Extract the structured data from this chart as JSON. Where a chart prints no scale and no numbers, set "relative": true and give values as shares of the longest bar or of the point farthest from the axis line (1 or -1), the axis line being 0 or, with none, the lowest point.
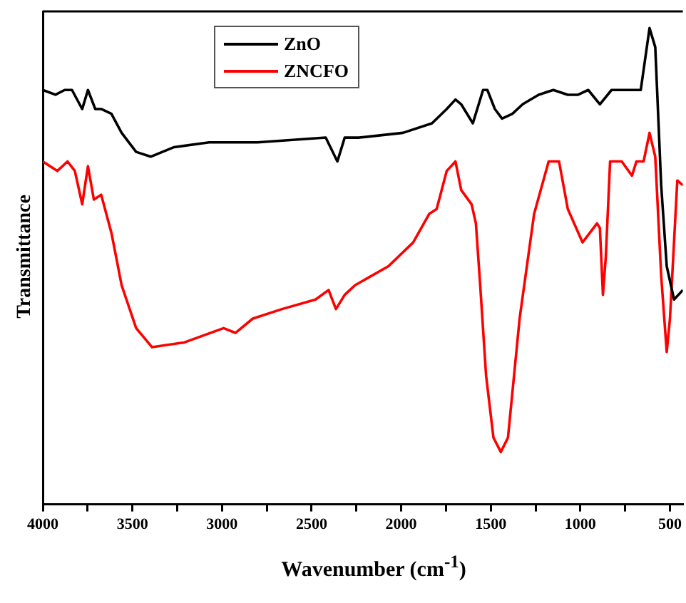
{
  "chart_data": {
    "type": "line",
    "xlabel": "Wavenumber (cm$^{-1}$)",
    "ylabel": "Transmittance",
    "relative": true,
    "legend": "top",
    "grid": false,
    "marker": "none",
    "line_style": "solid",
    "xlim": [
      4000,
      428
    ],
    "xticks": [
      4000,
      {
        "value": 3750,
        "label": null
      },
      3500,
      {
        "value": 3250,
        "label": null
      },
      3000,
      {
        "value": 2750,
        "label": null
      },
      2500,
      {
        "value": 2250,
        "label": null
      },
      2000,
      {
        "value": 1750,
        "label": null
      },
      1500,
      {
        "value": 1250,
        "label": null
      },
      1000,
      {
        "value": 750,
        "label": null
      },
      500
    ],
    "series": [
      {
        "name": "ZnO",
        "color": "#000000",
        "x": [
          4000,
          3929,
          3878,
          3837,
          3780,
          3748,
          3707,
          3674,
          3617,
          3560,
          3479,
          3398,
          3267,
          3072,
          2925,
          2803,
          2421,
          2356,
          2315,
          2234,
          1990,
          1828,
          1746,
          1697,
          1665,
          1600,
          1543,
          1519,
          1477,
          1437,
          1379,
          1322,
          1233,
          1151,
          1070,
          1013,
          956,
          891,
          826,
          663,
          614,
          582,
          549,
          518,
          477,
          428
        ],
        "values": [
          0.87,
          0.86,
          0.87,
          0.87,
          0.83,
          0.87,
          0.83,
          0.83,
          0.82,
          0.78,
          0.74,
          0.73,
          0.75,
          0.76,
          0.76,
          0.76,
          0.77,
          0.72,
          0.77,
          0.77,
          0.78,
          0.8,
          0.83,
          0.85,
          0.84,
          0.8,
          0.87,
          0.87,
          0.83,
          0.81,
          0.82,
          0.84,
          0.86,
          0.87,
          0.86,
          0.86,
          0.87,
          0.84,
          0.87,
          0.87,
          1.0,
          0.96,
          0.67,
          0.5,
          0.43,
          0.45
        ]
      },
      {
        "name": "ZNCFO",
        "color": "#ff0000",
        "x": [
          4000,
          3919,
          3862,
          3821,
          3780,
          3748,
          3715,
          3674,
          3617,
          3560,
          3479,
          3390,
          3210,
          2991,
          2925,
          2828,
          2665,
          2478,
          2405,
          2364,
          2315,
          2258,
          2071,
          1933,
          1843,
          1802,
          1746,
          1697,
          1665,
          1607,
          1583,
          1559,
          1526,
          1485,
          1444,
          1404,
          1339,
          1258,
          1177,
          1119,
          1070,
          988,
          907,
          891,
          874,
          858,
          834,
          769,
          712,
          687,
          647,
          614,
          582,
          549,
          518,
          500,
          459,
          428
        ],
        "values": [
          0.72,
          0.7,
          0.72,
          0.7,
          0.63,
          0.71,
          0.64,
          0.65,
          0.57,
          0.46,
          0.37,
          0.33,
          0.34,
          0.37,
          0.36,
          0.39,
          0.41,
          0.43,
          0.45,
          0.41,
          0.44,
          0.46,
          0.5,
          0.55,
          0.61,
          0.62,
          0.7,
          0.72,
          0.66,
          0.63,
          0.59,
          0.46,
          0.27,
          0.14,
          0.11,
          0.14,
          0.39,
          0.61,
          0.72,
          0.72,
          0.62,
          0.55,
          0.59,
          0.58,
          0.44,
          0.52,
          0.72,
          0.72,
          0.69,
          0.72,
          0.72,
          0.78,
          0.73,
          0.48,
          0.32,
          0.39,
          0.68,
          0.67
        ]
      }
    ]
  }
}
